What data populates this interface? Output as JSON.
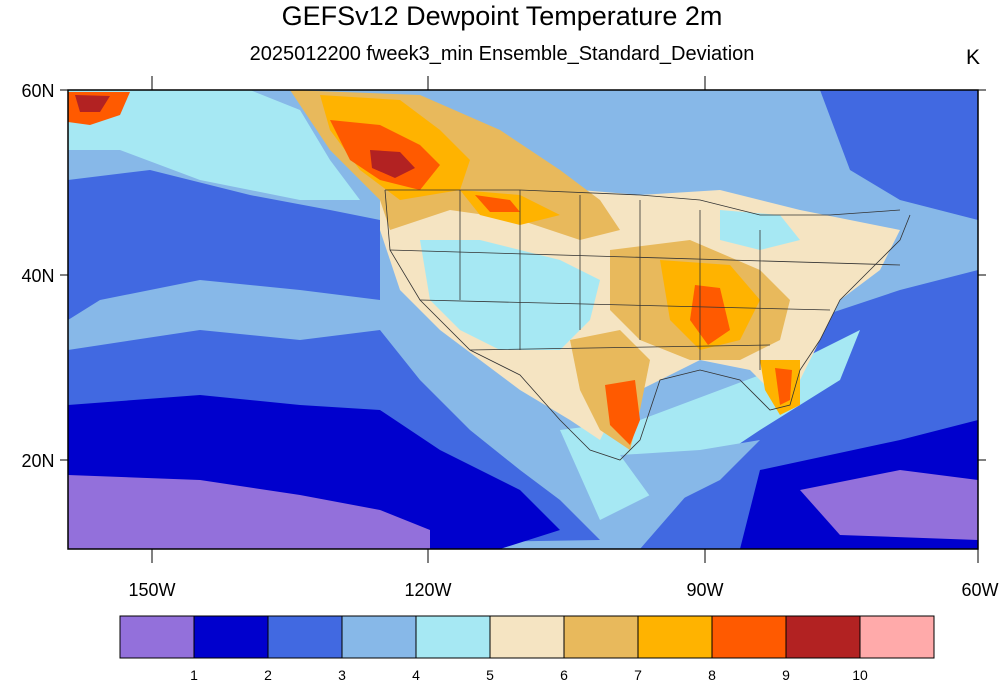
{
  "header": {
    "title": "GEFSv12 Dewpoint Temperature 2m",
    "subtitle": "2025012200 fweek3_min Ensemble_Standard_Deviation",
    "units": "K"
  },
  "axes": {
    "lat_labels": [
      "60N",
      "40N",
      "20N"
    ],
    "lon_labels": [
      "150W",
      "120W",
      "90W",
      "60W"
    ]
  },
  "colorbar": {
    "colors": [
      "#9370db",
      "#0000cd",
      "#4169e1",
      "#87b8e8",
      "#a6e8f3",
      "#f5e4c2",
      "#e8b95c",
      "#ffb300",
      "#ff5a00",
      "#b22222",
      "#ffaaaa"
    ],
    "tick_labels": [
      "1",
      "2",
      "3",
      "4",
      "5",
      "6",
      "7",
      "8",
      "9",
      "10"
    ]
  }
}
